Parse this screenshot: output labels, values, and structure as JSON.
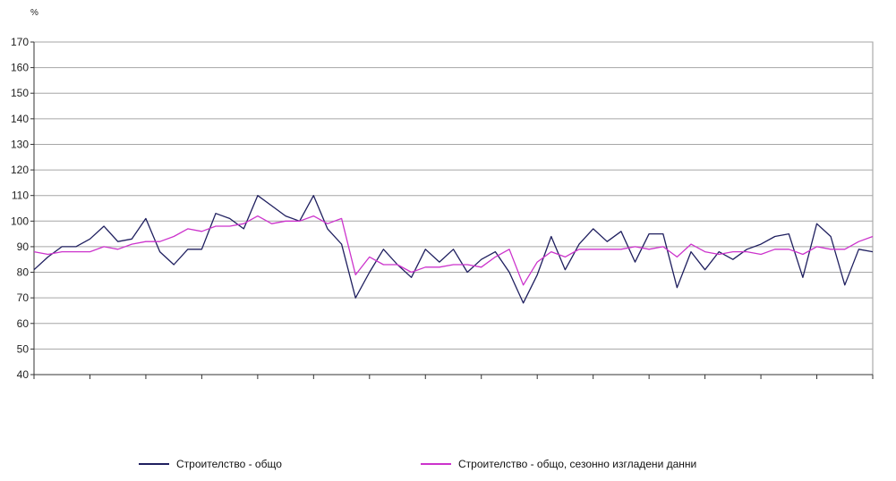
{
  "chart_data": {
    "type": "line",
    "unit_label": "%",
    "ylim": [
      40,
      170
    ],
    "yticks": [
      40,
      50,
      60,
      70,
      80,
      90,
      100,
      110,
      120,
      130,
      140,
      150,
      160,
      170
    ],
    "grid": true,
    "legend_position": "bottom",
    "n_points": 61,
    "series": [
      {
        "name": "Строителство - общо",
        "color": "#1f1f5f",
        "values": [
          81,
          86,
          90,
          90,
          93,
          98,
          92,
          93,
          101,
          88,
          83,
          89,
          89,
          103,
          101,
          97,
          110,
          106,
          102,
          100,
          110,
          97,
          91,
          70,
          80,
          89,
          83,
          78,
          89,
          84,
          89,
          80,
          85,
          88,
          80,
          68,
          79,
          94,
          81,
          91,
          97,
          92,
          96,
          84,
          95,
          95,
          74,
          88,
          81,
          88,
          85,
          89,
          91,
          94,
          95,
          78,
          99,
          94,
          75,
          89,
          88
        ]
      },
      {
        "name": "Строителство - общо, сезонно изгладени данни",
        "color": "#cc33cc",
        "values": [
          88,
          87,
          88,
          88,
          88,
          90,
          89,
          91,
          92,
          92,
          94,
          97,
          96,
          98,
          98,
          99,
          102,
          99,
          100,
          100,
          102,
          99,
          101,
          79,
          86,
          83,
          83,
          80,
          82,
          82,
          83,
          83,
          82,
          86,
          89,
          75,
          84,
          88,
          86,
          89,
          89,
          89,
          89,
          90,
          89,
          90,
          86,
          91,
          88,
          87,
          88,
          88,
          87,
          89,
          89,
          87,
          90,
          89,
          89,
          92,
          94
        ]
      }
    ]
  }
}
